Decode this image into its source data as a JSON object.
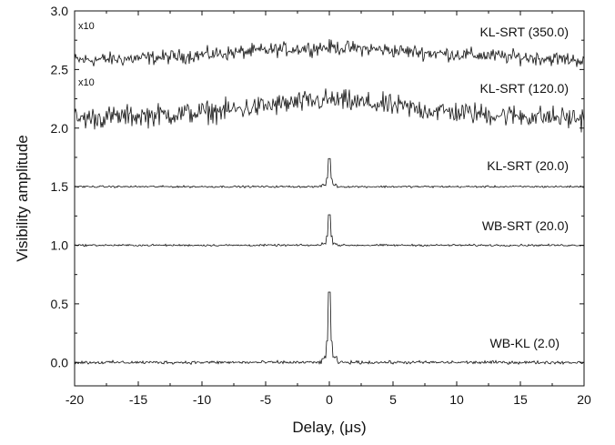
{
  "chart_data": {
    "type": "line",
    "title": "",
    "xlabel": "Delay, (μs)",
    "ylabel": "Visibility amplitude",
    "xlim": [
      -20,
      20
    ],
    "ylim": [
      -0.2,
      3.0
    ],
    "x_ticks": [
      -20,
      -15,
      -10,
      -5,
      0,
      5,
      10,
      15,
      20
    ],
    "x_tick_labels": [
      "-20",
      "-15",
      "-10",
      "-5",
      "0",
      "5",
      "10",
      "15",
      "20"
    ],
    "y_ticks": [
      0.0,
      0.5,
      1.0,
      1.5,
      2.0,
      2.5,
      3.0
    ],
    "y_tick_labels": [
      "0.0",
      "0.5",
      "1.0",
      "1.5",
      "2.0",
      "2.5",
      "3.0"
    ],
    "grid": false,
    "legend": "none",
    "series": [
      {
        "name": "KL-SRT (350.0)",
        "scale_note": "x10",
        "baseline": 2.58,
        "x": [
          -20,
          -16,
          -12,
          -8,
          -4,
          0,
          4,
          8,
          12,
          16,
          20
        ],
        "y": [
          2.58,
          2.59,
          2.61,
          2.64,
          2.67,
          2.69,
          2.67,
          2.64,
          2.62,
          2.6,
          2.58
        ],
        "noise_amplitude": 0.09,
        "peak": null
      },
      {
        "name": "KL-SRT (120.0)",
        "scale_note": "x10",
        "baseline": 2.08,
        "x": [
          -20,
          -16,
          -12,
          -8,
          -4,
          0,
          4,
          8,
          12,
          16,
          20
        ],
        "y": [
          2.08,
          2.1,
          2.12,
          2.15,
          2.2,
          2.24,
          2.2,
          2.15,
          2.12,
          2.1,
          2.08
        ],
        "noise_amplitude": 0.14,
        "peak": null
      },
      {
        "name": "KL-SRT (20.0)",
        "scale_note": "",
        "baseline": 1.5,
        "x": [
          -20,
          20
        ],
        "y": [
          1.5,
          1.5
        ],
        "noise_amplitude": 0.012,
        "peak": {
          "x": 0.0,
          "y": 1.74
        }
      },
      {
        "name": "WB-SRT (20.0)",
        "scale_note": "",
        "baseline": 1.0,
        "x": [
          -20,
          20
        ],
        "y": [
          1.0,
          1.0
        ],
        "noise_amplitude": 0.012,
        "peak": {
          "x": 0.0,
          "y": 1.26
        }
      },
      {
        "name": "WB-KL (2.0)",
        "scale_note": "",
        "baseline": 0.0,
        "x": [
          -20,
          20
        ],
        "y": [
          0.0,
          0.0
        ],
        "noise_amplitude": 0.02,
        "peak": {
          "x": 0.0,
          "y": 0.6
        }
      }
    ]
  },
  "colors": {
    "line": "#111111",
    "axis": "#111111",
    "background": "#ffffff"
  }
}
